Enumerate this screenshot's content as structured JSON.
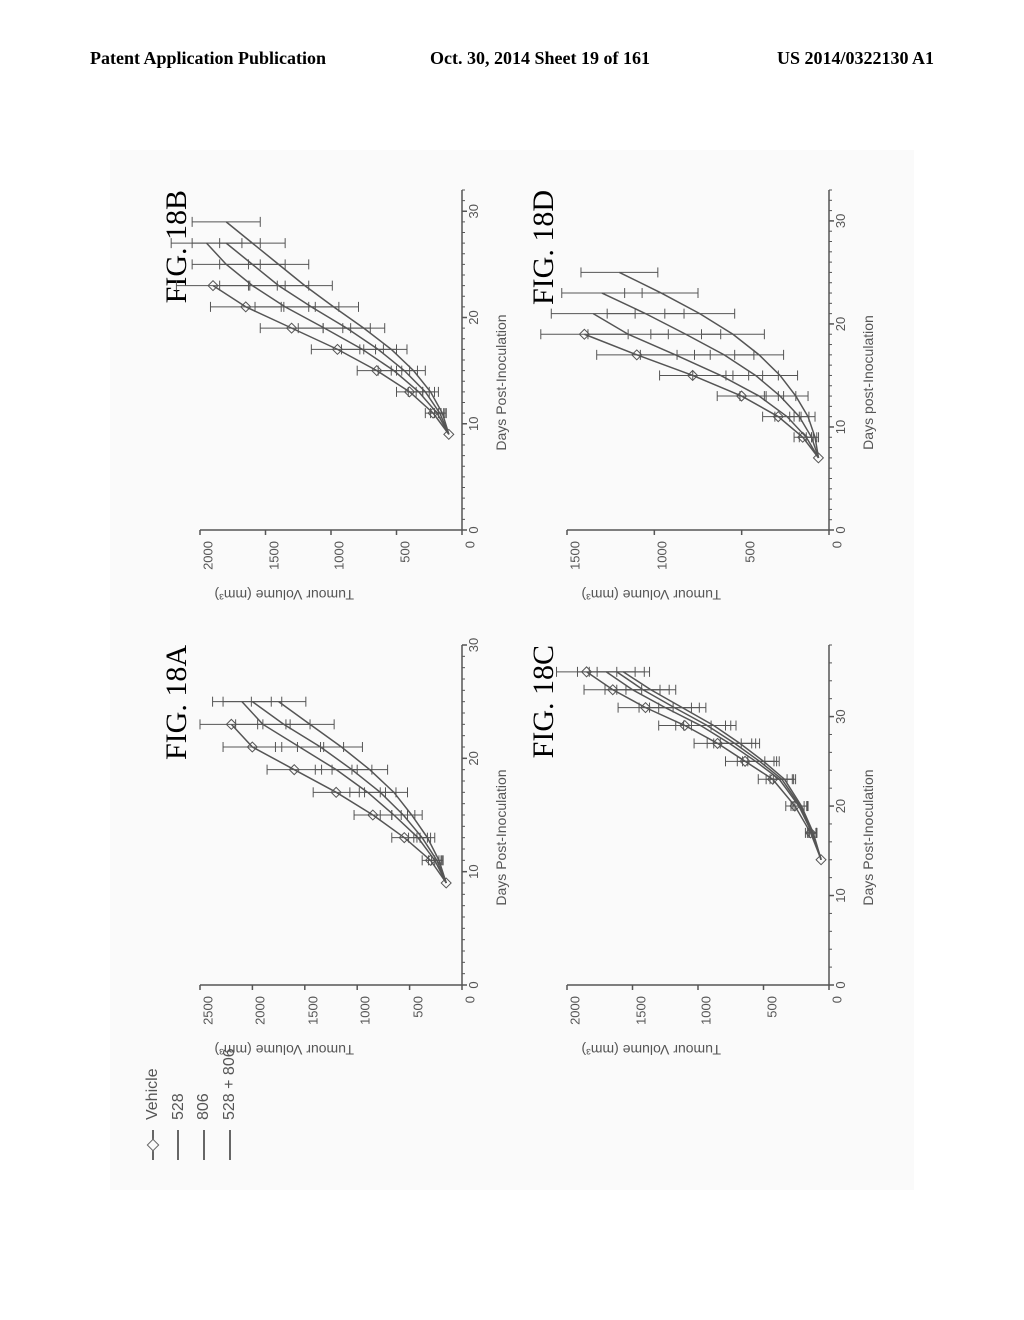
{
  "header": {
    "left": "Patent Application Publication",
    "center": "Oct. 30, 2014  Sheet 19 of 161",
    "right": "US 2014/0322130 A1"
  },
  "legend": {
    "items": [
      {
        "label": "Vehicle",
        "marker": true
      },
      {
        "label": "528",
        "marker": false
      },
      {
        "label": "806",
        "marker": false
      },
      {
        "label": "528 + 806",
        "marker": false
      }
    ],
    "color": "#666666",
    "fontsize": 16
  },
  "axis_style": {
    "axis_color": "#555555",
    "tick_len": 5,
    "minor_tick_len": 3,
    "line_width": 1.5,
    "font_family": "Arial",
    "label_fontsize": 14,
    "tick_fontsize": 13,
    "background_color": "#fafafa"
  },
  "series_style": {
    "line_color": "#555555",
    "line_width": 1.5,
    "errorbar_cap": 5,
    "marker_size": 5
  },
  "panels": {
    "A": {
      "label": "FIG. 18A",
      "xlabel": "Days Post-Inoculation",
      "ylabel": "Tumour Volume (mm³)",
      "xlim": [
        0,
        30
      ],
      "xtick_step": 10,
      "x_minor_step": 1,
      "ylim": [
        0,
        2500
      ],
      "ytick_step": 500,
      "series": [
        {
          "key": "vehicle",
          "marker": true,
          "x": [
            9,
            11,
            13,
            15,
            17,
            19,
            21,
            23
          ],
          "y": [
            150,
            300,
            550,
            850,
            1200,
            1600,
            2000,
            2200
          ],
          "err": [
            0,
            80,
            120,
            180,
            220,
            260,
            280,
            300
          ]
        },
        {
          "key": "528",
          "x": [
            9,
            11,
            13,
            15,
            17,
            19,
            21,
            23,
            25
          ],
          "y": [
            150,
            260,
            420,
            650,
            900,
            1200,
            1550,
            1900,
            2100
          ],
          "err": [
            0,
            60,
            90,
            130,
            170,
            200,
            230,
            260,
            280
          ]
        },
        {
          "key": "806",
          "x": [
            9,
            11,
            13,
            15,
            17,
            19,
            21,
            23,
            25
          ],
          "y": [
            150,
            240,
            380,
            560,
            780,
            1050,
            1350,
            1700,
            2000
          ],
          "err": [
            0,
            50,
            80,
            110,
            150,
            190,
            220,
            250,
            280
          ]
        },
        {
          "key": "528+806",
          "x": [
            9,
            11,
            13,
            15,
            17,
            19,
            21,
            23,
            25
          ],
          "y": [
            150,
            220,
            330,
            480,
            650,
            880,
            1150,
            1450,
            1750
          ],
          "err": [
            0,
            40,
            70,
            100,
            130,
            170,
            200,
            230,
            260
          ]
        }
      ]
    },
    "B": {
      "label": "FIG. 18B",
      "xlabel": "Days Post-Inoculation",
      "ylabel": "Tumour Volume (mm³)",
      "xlim": [
        0,
        32
      ],
      "xtick_step": 10,
      "x_minor_step": 1,
      "ylim": [
        0,
        2000
      ],
      "ytick_step": 500,
      "series": [
        {
          "key": "vehicle",
          "marker": true,
          "x": [
            9,
            11,
            13,
            15,
            17,
            19,
            21,
            23
          ],
          "y": [
            100,
            220,
            400,
            650,
            950,
            1300,
            1650,
            1900
          ],
          "err": [
            0,
            60,
            100,
            150,
            200,
            240,
            270,
            280
          ]
        },
        {
          "key": "528",
          "x": [
            9,
            11,
            13,
            15,
            17,
            19,
            21,
            23,
            25,
            27
          ],
          "y": [
            100,
            190,
            330,
            520,
            760,
            1050,
            1350,
            1600,
            1800,
            1950
          ],
          "err": [
            0,
            50,
            80,
            120,
            160,
            200,
            230,
            250,
            260,
            270
          ]
        },
        {
          "key": "806",
          "x": [
            9,
            11,
            13,
            15,
            17,
            19,
            21,
            23,
            25,
            27
          ],
          "y": [
            100,
            170,
            280,
            440,
            640,
            880,
            1150,
            1400,
            1600,
            1800
          ],
          "err": [
            0,
            40,
            70,
            100,
            140,
            180,
            210,
            230,
            250,
            260
          ]
        },
        {
          "key": "528+806",
          "x": [
            9,
            11,
            13,
            15,
            17,
            19,
            21,
            23,
            25,
            27,
            29
          ],
          "y": [
            100,
            150,
            240,
            370,
            540,
            750,
            980,
            1200,
            1400,
            1600,
            1800
          ],
          "err": [
            0,
            30,
            60,
            90,
            120,
            160,
            190,
            210,
            230,
            250,
            260
          ]
        }
      ]
    },
    "C": {
      "label": "FIG. 18C",
      "xlabel": "Days Post-Inoculation",
      "ylabel": "Tumour Volume (mm³)",
      "xlim": [
        0,
        38
      ],
      "xtick_step": 10,
      "x_minor_step": 2,
      "ylim": [
        0,
        2000
      ],
      "ytick_step": 500,
      "series": [
        {
          "key": "vehicle",
          "marker": true,
          "x": [
            14,
            17,
            20,
            23,
            25,
            27,
            29,
            31,
            33,
            35
          ],
          "y": [
            60,
            140,
            260,
            430,
            640,
            850,
            1100,
            1400,
            1650,
            1850
          ],
          "err": [
            0,
            40,
            70,
            110,
            150,
            180,
            200,
            210,
            220,
            230
          ]
        },
        {
          "key": "528",
          "x": [
            14,
            17,
            20,
            23,
            25,
            27,
            29,
            31,
            33,
            35
          ],
          "y": [
            60,
            130,
            230,
            380,
            560,
            760,
            980,
            1250,
            1500,
            1700
          ],
          "err": [
            0,
            35,
            60,
            100,
            140,
            170,
            190,
            200,
            210,
            220
          ]
        },
        {
          "key": "806",
          "x": [
            14,
            17,
            20,
            23,
            25,
            27,
            29,
            31,
            33,
            35
          ],
          "y": [
            60,
            125,
            220,
            360,
            530,
            720,
            930,
            1180,
            1420,
            1620
          ],
          "err": [
            0,
            30,
            55,
            90,
            130,
            160,
            180,
            190,
            200,
            210
          ]
        },
        {
          "key": "528+806",
          "x": [
            14,
            17,
            20,
            23,
            25,
            27,
            29,
            31,
            33,
            35
          ],
          "y": [
            60,
            120,
            210,
            340,
            500,
            680,
            880,
            1120,
            1360,
            1570
          ],
          "err": [
            0,
            28,
            50,
            85,
            120,
            150,
            170,
            180,
            190,
            200
          ]
        }
      ]
    },
    "D": {
      "label": "FIG. 18D",
      "xlabel": "Days post-Inoculation",
      "ylabel": "Tumour Volume (mm³)",
      "xlim": [
        0,
        33
      ],
      "xtick_step": 10,
      "x_minor_step": 1,
      "ylim": [
        0,
        1500
      ],
      "ytick_step": 500,
      "series": [
        {
          "key": "vehicle",
          "marker": true,
          "x": [
            7,
            9,
            11,
            13,
            15,
            17,
            19
          ],
          "y": [
            60,
            150,
            290,
            500,
            780,
            1100,
            1400
          ],
          "err": [
            0,
            50,
            90,
            140,
            190,
            230,
            250
          ]
        },
        {
          "key": "528",
          "x": [
            7,
            9,
            11,
            13,
            15,
            17,
            19,
            21
          ],
          "y": [
            60,
            130,
            240,
            400,
            620,
            880,
            1150,
            1350
          ],
          "err": [
            0,
            40,
            70,
            110,
            160,
            200,
            230,
            240
          ]
        },
        {
          "key": "806",
          "x": [
            7,
            9,
            11,
            13,
            15,
            17,
            19,
            21,
            23
          ],
          "y": [
            60,
            100,
            170,
            280,
            420,
            600,
            820,
            1050,
            1300
          ],
          "err": [
            0,
            30,
            55,
            90,
            130,
            170,
            200,
            220,
            230
          ]
        },
        {
          "key": "528+806",
          "x": [
            7,
            9,
            11,
            13,
            15,
            17,
            19,
            21,
            23,
            25
          ],
          "y": [
            60,
            80,
            120,
            190,
            280,
            400,
            550,
            740,
            960,
            1200
          ],
          "err": [
            0,
            20,
            40,
            70,
            100,
            140,
            180,
            200,
            210,
            220
          ]
        }
      ]
    }
  }
}
